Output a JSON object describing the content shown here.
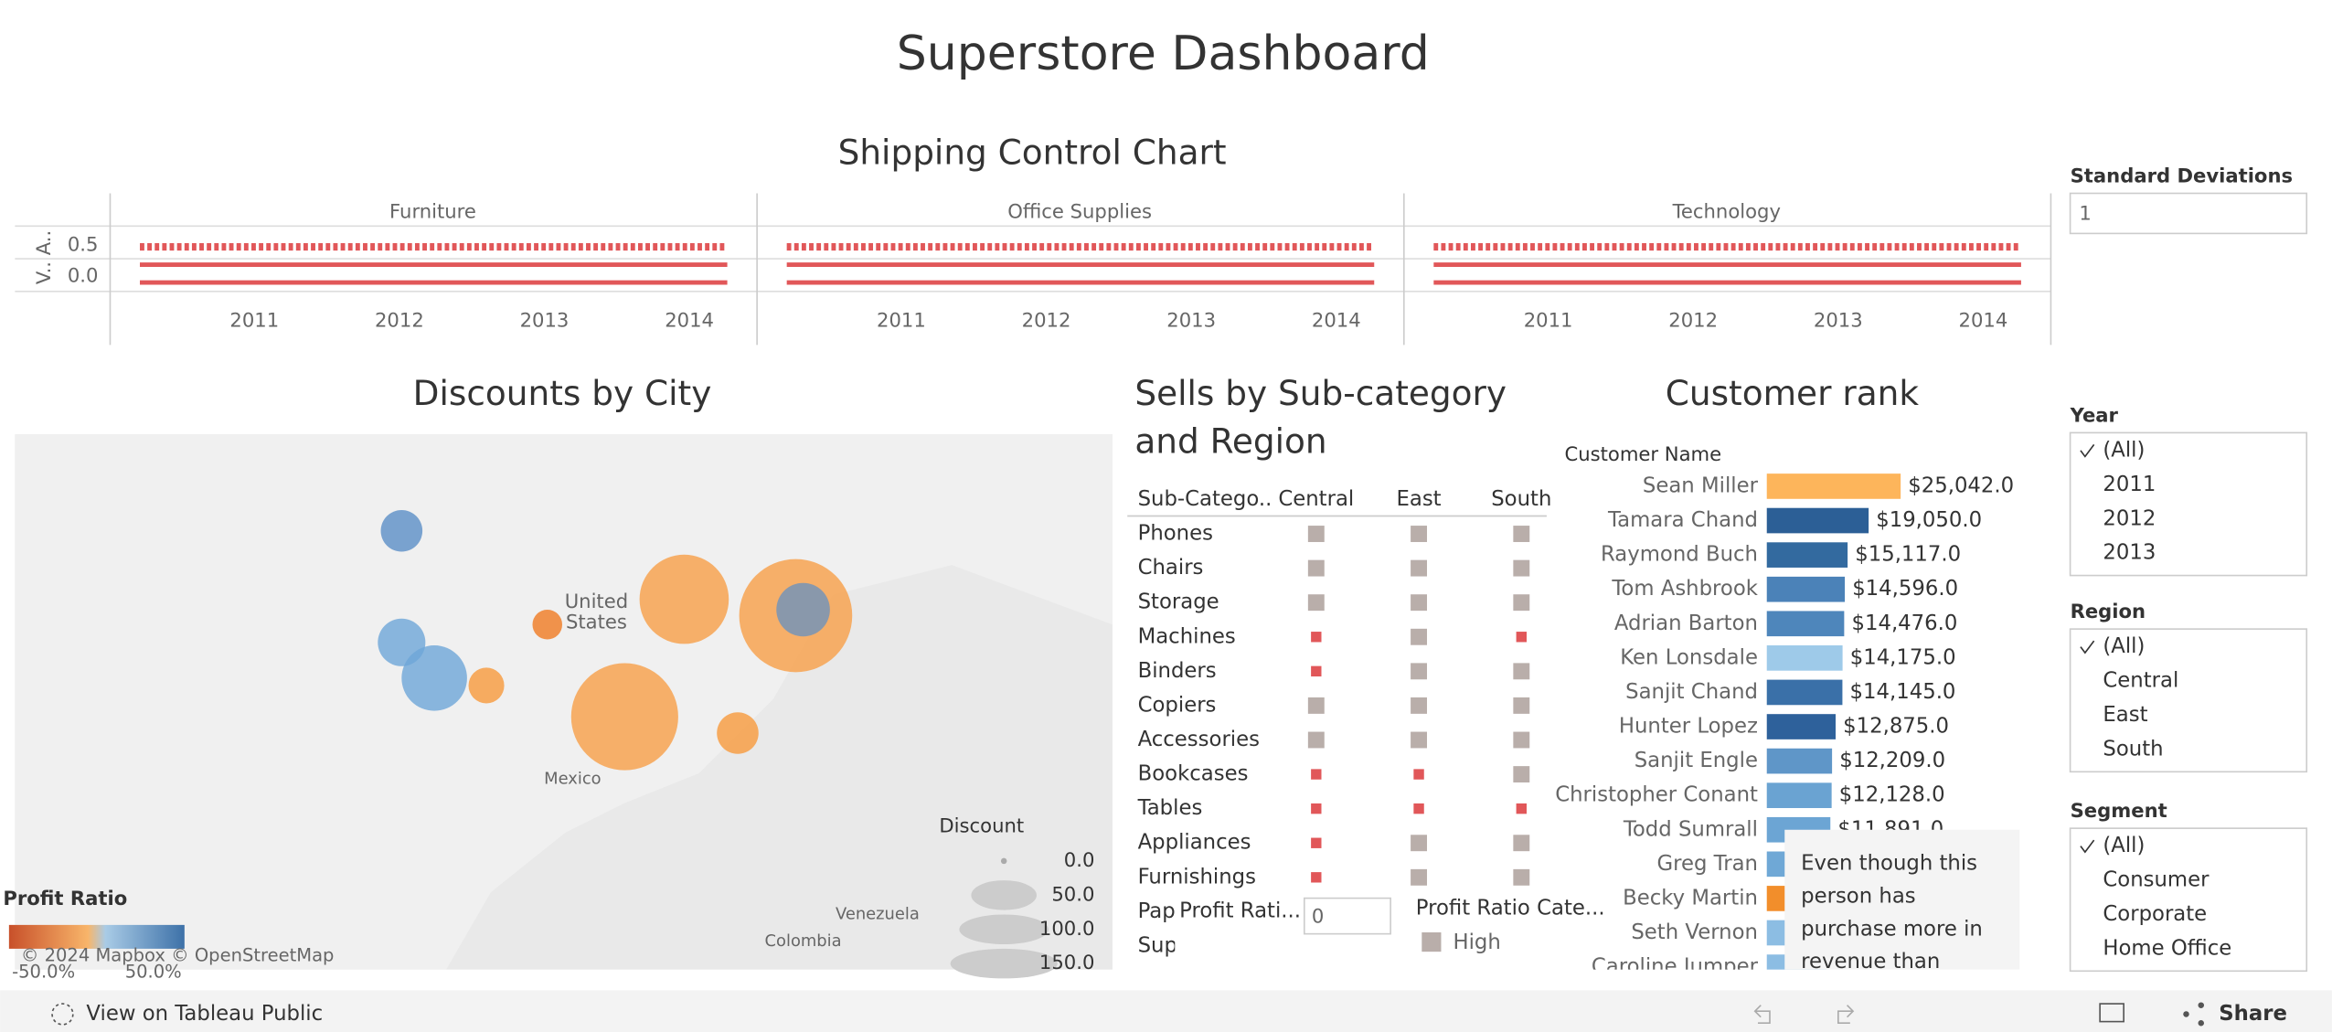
{
  "header": {
    "title": "Superstore Dashboard"
  },
  "shipping_chart": {
    "title": "Shipping Control Chart",
    "facets": [
      "Furniture",
      "Office Supplies",
      "Technology"
    ],
    "y_label": "V.. A..",
    "y_tick_labels": [
      "0.5",
      "0.0"
    ],
    "years": [
      "2011",
      "2012",
      "2013",
      "2014"
    ]
  },
  "filters": [
    {
      "label": "Standard Deviations",
      "input": "1"
    },
    {
      "label": "Year",
      "items": [
        "(All)",
        "2011",
        "2012",
        "2013"
      ]
    },
    {
      "label": "Region",
      "items": [
        "(All)",
        "Central",
        "East",
        "South"
      ]
    },
    {
      "label": "Segment",
      "items": [
        "(All)",
        "Consumer",
        "Corporate",
        "Home Office"
      ]
    }
  ],
  "map": {
    "title": "Discounts by City",
    "labels": [
      "United",
      "States",
      "Mexico",
      "Venezuela",
      "Colombia"
    ],
    "attribution": "© 2024 Mapbox  © OpenStreetMap",
    "size_legend": {
      "title": "Discount",
      "labels": [
        "0.0",
        "50.0",
        "100.0",
        "150.0"
      ]
    },
    "color_legend": {
      "title": "Profit Ratio",
      "labels": [
        "-50.0%",
        "50.0%"
      ]
    }
  },
  "sub_category": {
    "title_lines": [
      "Sells by Sub-category",
      "and Region"
    ],
    "columns": [
      "Sub-Catego..",
      "Central",
      "East",
      "South"
    ],
    "rows": [
      "Phones",
      "Chairs",
      "Storage",
      "Machines",
      "Binders",
      "Copiers",
      "Accessories",
      "Bookcases",
      "Tables",
      "Appliances",
      "Furnishings",
      "Paper",
      "Supplies"
    ],
    "cell_colors": [
      [
        "#b9aeaa",
        "#b9aeaa",
        "#b9aeaa"
      ],
      [
        "#b9aeaa",
        "#b9aeaa",
        "#b9aeaa"
      ],
      [
        "#b9aeaa",
        "#b9aeaa",
        "#b9aeaa"
      ],
      [
        "#e15759",
        "#b9aeaa",
        "#e15759"
      ],
      [
        "#e15759",
        "#b9aeaa",
        "#b9aeaa"
      ],
      [
        "#b9aeaa",
        "#b9aeaa",
        "#b9aeaa"
      ],
      [
        "#b9aeaa",
        "#b9aeaa",
        "#b9aeaa"
      ],
      [
        "#e15759",
        "#e15759",
        "#b9aeaa"
      ],
      [
        "#e15759",
        "#e15759",
        "#e15759"
      ],
      [
        "#e15759",
        "#b9aeaa",
        "#b9aeaa"
      ],
      [
        "#e15759",
        "#b9aeaa",
        "#b9aeaa"
      ],
      [
        "#b9aeaa",
        "#b9aeaa",
        "#b9aeaa"
      ],
      [
        "#e15759",
        "#e15759",
        "#b9aeaa"
      ]
    ],
    "profit_ratio_filter": {
      "label": "Profit Rati...",
      "input": "0"
    },
    "category_legend": {
      "title": "Profit Ratio Cate...",
      "item": "High"
    }
  },
  "chart_data": {
    "type": "bar",
    "title": "Customer rank",
    "axis_label": "Customer Name",
    "categories": [
      "Sean Miller",
      "Tamara Chand",
      "Raymond Buch",
      "Tom Ashbrook",
      "Adrian Barton",
      "Ken Lonsdale",
      "Sanjit Chand",
      "Hunter Lopez",
      "Sanjit Engle",
      "Christopher Conant",
      "Todd Sumrall",
      "Greg Tran",
      "Becky Martin",
      "Seth Vernon",
      "Caroline Jumper"
    ],
    "values": [
      25042,
      19050,
      15117,
      14596,
      14476,
      14175,
      14145,
      12875,
      12209,
      12128,
      11891,
      11820,
      11790,
      11470,
      11165
    ],
    "value_labels": [
      "$25,042.0",
      "$19,050.0",
      "$15,117.0",
      "$14,596.0",
      "$14,476.0",
      "$14,175.0",
      "$14,145.0",
      "$12,875.0",
      "$12,209.0",
      "$12,128.0",
      "$11,891.0",
      null,
      null,
      null,
      null
    ],
    "colors": [
      "#fdb55b",
      "#2c5f96",
      "#336a9f",
      "#4b82b8",
      "#4e86bb",
      "#9ecae9",
      "#3a70a8",
      "#2e619b",
      "#5f96c8",
      "#6aa3d2",
      "#6ca5d4",
      "#6fa8d6",
      "#f28e2b",
      "#8cbde3",
      "#8cbde3"
    ]
  },
  "tooltip": {
    "lines": [
      "Even though this",
      "person has",
      "purchase more in",
      "revenue than"
    ]
  },
  "toolbar": {
    "left": "View on Tableau Public",
    "right": "Share"
  }
}
